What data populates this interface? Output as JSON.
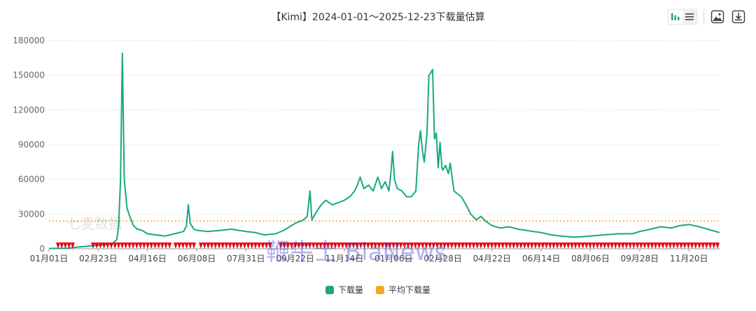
{
  "chart_data": {
    "type": "line",
    "title": "【Kimi】2024-01-01～2025-12-23下载量估算",
    "x_tick_labels": [
      "01月01日",
      "02月23日",
      "04月16日",
      "06月08日",
      "07月31日",
      "09月22日",
      "11月14日",
      "01月06日",
      "02月28日",
      "04月22日",
      "06月14日",
      "08月06日",
      "09月28日",
      "11月20日"
    ],
    "x_tick_dates": [
      "2024-01-01",
      "2024-02-23",
      "2024-04-16",
      "2024-06-08",
      "2024-07-31",
      "2024-09-22",
      "2024-11-14",
      "2025-01-06",
      "2025-02-28",
      "2025-04-22",
      "2025-06-14",
      "2025-08-06",
      "2025-09-28",
      "2025-11-20"
    ],
    "xlim": [
      "2024-01-01",
      "2025-12-23"
    ],
    "y_ticks": [
      0,
      30000,
      60000,
      90000,
      120000,
      150000,
      180000
    ],
    "y_tick_labels": [
      "0",
      "30000",
      "60000",
      "90000",
      "120000",
      "150000",
      "180000"
    ],
    "ylim": [
      0,
      180000
    ],
    "grid": "horizontal dashed",
    "legend_position": "bottom-center",
    "series": [
      {
        "name": "下载量",
        "color": "#19a783",
        "points": [
          [
            "2024-01-01",
            300
          ],
          [
            "2024-01-20",
            400
          ],
          [
            "2024-02-01",
            1500
          ],
          [
            "2024-02-15",
            2500
          ],
          [
            "2024-02-23",
            3000
          ],
          [
            "2024-03-01",
            3500
          ],
          [
            "2024-03-10",
            5000
          ],
          [
            "2024-03-14",
            8000
          ],
          [
            "2024-03-16",
            20000
          ],
          [
            "2024-03-18",
            60000
          ],
          [
            "2024-03-20",
            169000
          ],
          [
            "2024-03-22",
            60000
          ],
          [
            "2024-03-25",
            35000
          ],
          [
            "2024-03-28",
            28000
          ],
          [
            "2024-04-01",
            20000
          ],
          [
            "2024-04-05",
            17000
          ],
          [
            "2024-04-10",
            16000
          ],
          [
            "2024-04-16",
            13000
          ],
          [
            "2024-04-25",
            12000
          ],
          [
            "2024-05-05",
            11000
          ],
          [
            "2024-05-15",
            13000
          ],
          [
            "2024-05-25",
            15000
          ],
          [
            "2024-05-28",
            20000
          ],
          [
            "2024-05-30",
            38000
          ],
          [
            "2024-06-01",
            22000
          ],
          [
            "2024-06-05",
            17000
          ],
          [
            "2024-06-08",
            16000
          ],
          [
            "2024-06-20",
            15000
          ],
          [
            "2024-07-05",
            16000
          ],
          [
            "2024-07-15",
            17000
          ],
          [
            "2024-07-31",
            15000
          ],
          [
            "2024-08-10",
            14000
          ],
          [
            "2024-08-20",
            12000
          ],
          [
            "2024-09-01",
            13000
          ],
          [
            "2024-09-10",
            16000
          ],
          [
            "2024-09-18",
            20000
          ],
          [
            "2024-09-22",
            22000
          ],
          [
            "2024-10-01",
            25000
          ],
          [
            "2024-10-05",
            28000
          ],
          [
            "2024-10-08",
            50000
          ],
          [
            "2024-10-10",
            25000
          ],
          [
            "2024-10-15",
            32000
          ],
          [
            "2024-10-20",
            38000
          ],
          [
            "2024-10-25",
            42000
          ],
          [
            "2024-11-01",
            38000
          ],
          [
            "2024-11-08",
            40000
          ],
          [
            "2024-11-14",
            42000
          ],
          [
            "2024-11-20",
            45000
          ],
          [
            "2024-11-25",
            50000
          ],
          [
            "2024-11-28",
            55000
          ],
          [
            "2024-12-01",
            62000
          ],
          [
            "2024-12-05",
            52000
          ],
          [
            "2024-12-10",
            55000
          ],
          [
            "2024-12-15",
            50000
          ],
          [
            "2024-12-20",
            62000
          ],
          [
            "2024-12-24",
            52000
          ],
          [
            "2024-12-28",
            58000
          ],
          [
            "2025-01-01",
            50000
          ],
          [
            "2025-01-03",
            65000
          ],
          [
            "2025-01-05",
            84000
          ],
          [
            "2025-01-07",
            60000
          ],
          [
            "2025-01-10",
            52000
          ],
          [
            "2025-01-15",
            50000
          ],
          [
            "2025-01-20",
            45000
          ],
          [
            "2025-01-25",
            45000
          ],
          [
            "2025-01-30",
            50000
          ],
          [
            "2025-02-02",
            90000
          ],
          [
            "2025-02-04",
            102000
          ],
          [
            "2025-02-06",
            85000
          ],
          [
            "2025-02-08",
            75000
          ],
          [
            "2025-02-11",
            100000
          ],
          [
            "2025-02-13",
            150000
          ],
          [
            "2025-02-15",
            152000
          ],
          [
            "2025-02-17",
            155000
          ],
          [
            "2025-02-19",
            95000
          ],
          [
            "2025-02-21",
            100000
          ],
          [
            "2025-02-23",
            70000
          ],
          [
            "2025-02-25",
            92000
          ],
          [
            "2025-02-27",
            70000
          ],
          [
            "2025-02-28",
            68000
          ],
          [
            "2025-03-03",
            72000
          ],
          [
            "2025-03-06",
            65000
          ],
          [
            "2025-03-08",
            74000
          ],
          [
            "2025-03-12",
            50000
          ],
          [
            "2025-03-15",
            48000
          ],
          [
            "2025-03-20",
            45000
          ],
          [
            "2025-03-25",
            38000
          ],
          [
            "2025-03-30",
            30000
          ],
          [
            "2025-04-05",
            25000
          ],
          [
            "2025-04-10",
            28000
          ],
          [
            "2025-04-15",
            24000
          ],
          [
            "2025-04-22",
            20000
          ],
          [
            "2025-05-01",
            18000
          ],
          [
            "2025-05-10",
            19000
          ],
          [
            "2025-05-20",
            17000
          ],
          [
            "2025-05-28",
            16000
          ],
          [
            "2025-06-05",
            15000
          ],
          [
            "2025-06-14",
            14000
          ],
          [
            "2025-06-25",
            12000
          ],
          [
            "2025-07-05",
            11000
          ],
          [
            "2025-07-20",
            10000
          ],
          [
            "2025-08-06",
            11000
          ],
          [
            "2025-08-20",
            12000
          ],
          [
            "2025-09-05",
            13000
          ],
          [
            "2025-09-20",
            13000
          ],
          [
            "2025-09-28",
            15000
          ],
          [
            "2025-10-10",
            17000
          ],
          [
            "2025-10-20",
            19000
          ],
          [
            "2025-11-01",
            18000
          ],
          [
            "2025-11-10",
            20000
          ],
          [
            "2025-11-20",
            21000
          ],
          [
            "2025-12-01",
            19000
          ],
          [
            "2025-12-10",
            17000
          ],
          [
            "2025-12-23",
            14000
          ]
        ]
      },
      {
        "name": "平均下载量",
        "color": "#f5a623",
        "value": 24000
      }
    ]
  },
  "watermarks": [
    "七麦数据",
    "鞭牛士 BiaNews"
  ],
  "toolbar": {
    "icons": [
      "bar-chart-icon",
      "list-icon",
      "image-icon",
      "download-icon"
    ]
  }
}
